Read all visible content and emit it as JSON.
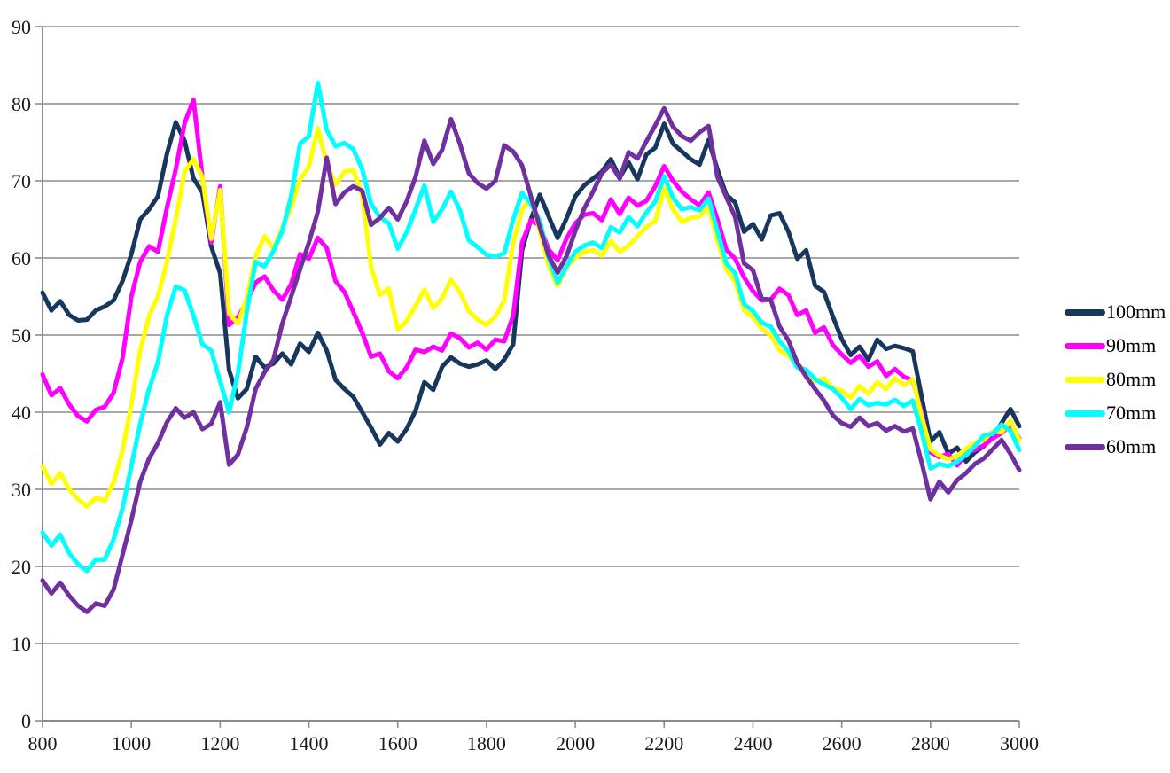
{
  "chart_data": {
    "type": "line",
    "title": "",
    "xlabel": "",
    "ylabel": "",
    "xlim": [
      800,
      3000
    ],
    "ylim": [
      0,
      90
    ],
    "x_start": 800,
    "x_step": 20,
    "x_ticks": [
      800,
      1000,
      1200,
      1400,
      1600,
      1800,
      2000,
      2200,
      2400,
      2600,
      2800,
      3000
    ],
    "y_ticks": [
      0,
      10,
      20,
      30,
      40,
      50,
      60,
      70,
      80,
      90
    ],
    "grid": "horizontal",
    "legend_position": "right-middle",
    "axis_color": "#8c8c8c",
    "gridline_color": "#8c8c8c",
    "background_color": "#ffffff",
    "line_width": 5,
    "series": [
      {
        "name": "100mm",
        "color": "#17375E",
        "values": [
          55.5,
          53.2,
          54.4,
          52.6,
          51.9,
          52.0,
          53.2,
          53.7,
          54.5,
          57.0,
          60.5,
          65.0,
          66.3,
          68.0,
          73.5,
          77.6,
          75.2,
          70.3,
          68.5,
          61.5,
          58.0,
          45.5,
          41.8,
          43.0,
          47.2,
          45.8,
          46.3,
          47.6,
          46.2,
          48.9,
          47.8,
          50.3,
          48.0,
          44.2,
          43.0,
          42.0,
          40.0,
          38.0,
          35.8,
          37.3,
          36.2,
          37.8,
          40.2,
          43.9,
          42.9,
          45.9,
          47.1,
          46.3,
          45.9,
          46.2,
          46.7,
          45.6,
          46.8,
          48.8,
          61.0,
          65.0,
          68.2,
          65.4,
          62.6,
          65.1,
          68.0,
          69.4,
          70.3,
          71.2,
          72.8,
          70.4,
          72.4,
          70.2,
          73.4,
          74.3,
          77.4,
          74.8,
          73.8,
          72.8,
          72.1,
          75.3,
          71.5,
          68.2,
          67.2,
          63.4,
          64.4,
          62.4,
          65.5,
          65.8,
          63.4,
          59.9,
          61.0,
          56.4,
          55.6,
          52.4,
          49.5,
          47.4,
          48.5,
          46.8,
          49.4,
          48.2,
          48.6,
          48.3,
          47.9,
          42.0,
          36.2,
          37.4,
          34.6,
          35.4,
          33.6,
          34.8,
          35.6,
          36.8,
          38.6,
          40.4,
          38.2
        ]
      },
      {
        "name": "90mm",
        "color": "#FF00FF",
        "values": [
          44.9,
          42.2,
          43.1,
          41.0,
          39.5,
          38.8,
          40.3,
          40.7,
          42.5,
          47.0,
          55.0,
          59.5,
          61.5,
          60.8,
          66.5,
          71.5,
          77.5,
          80.5,
          70.5,
          62.0,
          69.3,
          51.3,
          52.3,
          54.3,
          56.8,
          57.6,
          55.8,
          54.6,
          56.6,
          60.5,
          59.9,
          62.6,
          61.3,
          57.0,
          55.6,
          53.0,
          50.3,
          47.2,
          47.6,
          45.3,
          44.4,
          45.8,
          48.1,
          47.8,
          48.5,
          48.0,
          50.2,
          49.6,
          48.4,
          49.0,
          48.1,
          49.4,
          49.2,
          52.5,
          62.0,
          64.9,
          64.2,
          61.1,
          59.7,
          62.5,
          64.5,
          65.6,
          65.8,
          64.9,
          67.6,
          65.7,
          67.8,
          66.8,
          67.4,
          69.3,
          71.9,
          70.0,
          68.6,
          67.6,
          66.8,
          68.5,
          65.0,
          61.1,
          59.9,
          57.5,
          55.7,
          54.5,
          54.6,
          56.0,
          55.2,
          52.6,
          53.2,
          50.3,
          51.0,
          48.7,
          47.5,
          46.4,
          47.3,
          45.9,
          46.6,
          44.7,
          45.6,
          44.6,
          44.1,
          40.0,
          34.8,
          34.2,
          34.6,
          33.1,
          34.7,
          35.1,
          35.7,
          36.6,
          37.3,
          38.4,
          36.6
        ]
      },
      {
        "name": "80mm",
        "color": "#FFFF00",
        "values": [
          33.0,
          30.7,
          32.1,
          30.0,
          28.7,
          27.8,
          28.9,
          28.5,
          30.9,
          35.0,
          41.0,
          48.0,
          52.5,
          55.0,
          59.5,
          65.0,
          71.2,
          72.8,
          70.5,
          62.5,
          68.8,
          52.8,
          51.5,
          54.8,
          60.2,
          62.8,
          61.2,
          64.0,
          66.5,
          70.2,
          71.8,
          76.8,
          72.3,
          69.5,
          71.2,
          71.4,
          68.0,
          58.8,
          55.2,
          56.0,
          50.7,
          51.8,
          53.8,
          55.9,
          53.5,
          54.8,
          57.2,
          55.6,
          53.1,
          52.0,
          51.3,
          52.4,
          54.5,
          62.0,
          66.2,
          68.0,
          63.5,
          59.0,
          56.4,
          58.8,
          60.0,
          60.8,
          61.0,
          60.3,
          62.2,
          60.8,
          61.6,
          62.8,
          64.0,
          64.8,
          69.0,
          66.3,
          64.7,
          65.2,
          65.4,
          66.6,
          62.3,
          58.5,
          56.9,
          53.2,
          52.3,
          50.8,
          50.0,
          48.0,
          47.3,
          46.2,
          45.4,
          44.0,
          44.4,
          43.1,
          42.8,
          41.9,
          43.4,
          42.4,
          43.9,
          43.0,
          44.4,
          43.5,
          44.3,
          39.5,
          35.2,
          34.4,
          33.9,
          34.3,
          35.3,
          36.0,
          36.4,
          37.5,
          37.4,
          38.9,
          36.4
        ]
      },
      {
        "name": "70mm",
        "color": "#00FFFF",
        "values": [
          24.4,
          22.7,
          24.1,
          21.7,
          20.3,
          19.4,
          20.9,
          20.9,
          23.5,
          27.5,
          33.0,
          38.5,
          43.0,
          46.5,
          52.5,
          56.3,
          55.8,
          52.5,
          48.8,
          48.0,
          44.0,
          40.0,
          45.0,
          53.0,
          59.5,
          58.9,
          60.9,
          63.5,
          68.0,
          74.8,
          75.8,
          82.7,
          76.6,
          74.5,
          74.9,
          74.1,
          71.5,
          67.0,
          65.3,
          64.5,
          61.2,
          63.3,
          66.3,
          69.4,
          64.7,
          66.3,
          68.6,
          66.2,
          62.3,
          61.4,
          60.4,
          60.2,
          60.6,
          65.0,
          68.5,
          67.0,
          64.9,
          60.0,
          56.8,
          58.9,
          60.8,
          61.6,
          62.0,
          61.3,
          64.0,
          63.3,
          65.3,
          64.1,
          65.9,
          67.3,
          70.6,
          67.8,
          66.3,
          66.6,
          66.2,
          67.7,
          63.5,
          59.3,
          58.0,
          54.0,
          53.1,
          51.6,
          51.1,
          49.2,
          47.9,
          45.8,
          45.5,
          44.3,
          43.6,
          43.0,
          41.9,
          40.4,
          41.7,
          40.9,
          41.2,
          41.0,
          41.6,
          40.8,
          41.5,
          37.5,
          32.7,
          33.3,
          33.0,
          33.6,
          34.5,
          35.6,
          37.0,
          37.2,
          38.4,
          37.6,
          35.1
        ]
      },
      {
        "name": "60mm",
        "color": "#7030A0",
        "values": [
          18.2,
          16.5,
          17.9,
          16.2,
          14.9,
          14.1,
          15.2,
          14.9,
          17.0,
          21.5,
          26.0,
          31.0,
          34.0,
          36.0,
          38.7,
          40.5,
          39.3,
          40.0,
          37.8,
          38.5,
          41.3,
          33.2,
          34.5,
          38.0,
          43.0,
          45.2,
          46.8,
          51.5,
          55.0,
          58.5,
          62.0,
          66.0,
          73.0,
          67.0,
          68.5,
          69.3,
          68.7,
          64.3,
          65.2,
          66.5,
          65.0,
          67.3,
          70.5,
          75.2,
          72.2,
          74.0,
          78.0,
          74.8,
          71.0,
          69.7,
          69.0,
          70.0,
          74.6,
          73.8,
          72.0,
          68.0,
          64.0,
          60.3,
          58.1,
          60.2,
          63.5,
          66.4,
          68.6,
          71.0,
          72.1,
          70.3,
          73.7,
          72.9,
          75.1,
          77.2,
          79.4,
          77.0,
          75.8,
          75.2,
          76.3,
          77.1,
          70.5,
          67.9,
          65.3,
          59.3,
          58.4,
          54.7,
          54.6,
          51.1,
          49.3,
          46.4,
          44.6,
          43.0,
          41.5,
          39.6,
          38.6,
          38.1,
          39.3,
          38.2,
          38.6,
          37.6,
          38.2,
          37.5,
          37.9,
          33.5,
          28.7,
          31.0,
          29.6,
          31.2,
          32.1,
          33.3,
          34.0,
          35.2,
          36.4,
          34.6,
          32.5
        ]
      }
    ],
    "legend_items": [
      "100mm",
      "90mm",
      "80mm",
      "70mm",
      "60mm"
    ]
  }
}
